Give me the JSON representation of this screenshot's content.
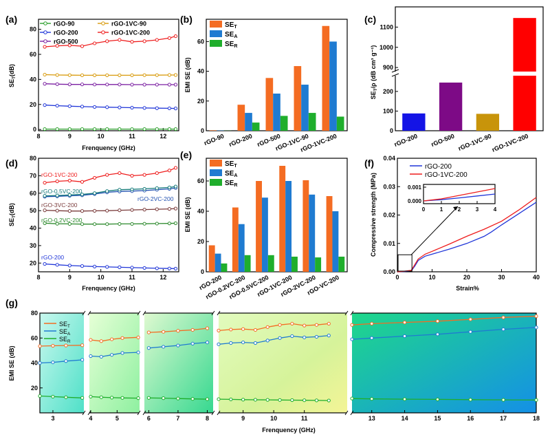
{
  "chart_data": [
    {
      "panel": "(a)",
      "type": "line",
      "xlabel": "Frenquency (GHz)",
      "ylabel": "SE_T(dB)",
      "xlim": [
        8,
        12.5
      ],
      "ylim": [
        -1,
        88
      ],
      "xticks": [
        8,
        9,
        10,
        11,
        12
      ],
      "yticks": [
        0,
        20,
        40,
        60,
        80
      ],
      "series": [
        {
          "name": "rGO-90",
          "color": "#2ca02c",
          "x": [
            8.2,
            8.6,
            9.0,
            9.4,
            9.8,
            10.2,
            10.6,
            11.0,
            11.4,
            11.8,
            12.2,
            12.4
          ],
          "values": [
            0.3,
            0.3,
            0.3,
            0.3,
            0.3,
            0.3,
            0.3,
            0.3,
            0.3,
            0.3,
            0.3,
            0.3
          ]
        },
        {
          "name": "rGO-200",
          "color": "#1f35d8",
          "x": [
            8.2,
            8.6,
            9.0,
            9.4,
            9.8,
            10.2,
            10.6,
            11.0,
            11.4,
            11.8,
            12.2,
            12.4
          ],
          "values": [
            19.5,
            19.0,
            18.6,
            18.3,
            18.0,
            17.8,
            17.6,
            17.4,
            17.2,
            17.0,
            16.9,
            16.8
          ]
        },
        {
          "name": "rGO-500",
          "color": "#7b1fa2",
          "x": [
            8.2,
            8.6,
            9.0,
            9.4,
            9.8,
            10.2,
            10.6,
            11.0,
            11.4,
            11.8,
            12.2,
            12.4
          ],
          "values": [
            36.5,
            36.2,
            36.0,
            36.0,
            35.9,
            35.9,
            35.9,
            35.8,
            35.8,
            35.8,
            35.8,
            35.8
          ]
        },
        {
          "name": "rGO-1VC-90",
          "color": "#d89a0a",
          "x": [
            8.2,
            8.6,
            9.0,
            9.4,
            9.8,
            10.2,
            10.6,
            11.0,
            11.4,
            11.8,
            12.2,
            12.4
          ],
          "values": [
            43.8,
            43.5,
            43.4,
            43.3,
            43.3,
            43.3,
            43.3,
            43.3,
            43.4,
            43.4,
            43.5,
            43.5
          ]
        },
        {
          "name": "rGO-1VC-200",
          "color": "#ee1c1c",
          "x": [
            8.2,
            8.6,
            9.0,
            9.4,
            9.8,
            10.2,
            10.6,
            11.0,
            11.4,
            11.8,
            12.2,
            12.4
          ],
          "values": [
            66.0,
            66.8,
            67.2,
            66.5,
            68.8,
            70.5,
            71.5,
            70.0,
            70.5,
            71.5,
            73.0,
            74.5
          ]
        }
      ]
    },
    {
      "panel": "(b)",
      "type": "bar",
      "ylabel": "EMI SE (dB)",
      "ylim": [
        0,
        75
      ],
      "yticks": [
        0,
        20,
        40,
        60
      ],
      "categories": [
        "rGO-90",
        "rGO-200",
        "rGO-500",
        "rGO-1VC-90",
        "rGO-1VC-200"
      ],
      "series": [
        {
          "name": "SE_T",
          "color": "#f46c22",
          "values": [
            0.3,
            17.5,
            35.5,
            43.5,
            70.5
          ]
        },
        {
          "name": "SE_A",
          "color": "#1f7bd1",
          "values": [
            0.2,
            12.0,
            25.0,
            31.0,
            60.0
          ]
        },
        {
          "name": "SE_R",
          "color": "#1fae2c",
          "values": [
            0.1,
            5.5,
            10.0,
            12.0,
            9.5
          ]
        }
      ]
    },
    {
      "panel": "(c)",
      "type": "bar",
      "ylabel": "SE_T/ρ (dB cm³ g⁻¹)",
      "categories": [
        "rGO-200",
        "rGO-500",
        "rGO-1VC-90",
        "rGO-1VC-200"
      ],
      "values": [
        88,
        245,
        86,
        1145
      ],
      "colors": [
        "#1414e6",
        "#7d0a86",
        "#c8940a",
        "#ff0000"
      ],
      "axis_break": [
        280,
        880
      ],
      "yticks_lower": [
        0,
        100,
        200
      ],
      "yticks_upper": [
        900,
        1000,
        1100
      ]
    },
    {
      "panel": "(d)",
      "type": "line",
      "xlabel": "Frenquency (GHz)",
      "ylabel": "SE_T(dB)",
      "xlim": [
        8,
        12.5
      ],
      "ylim": [
        15,
        80
      ],
      "xticks": [
        8,
        9,
        10,
        11,
        12
      ],
      "yticks": [
        20,
        30,
        40,
        50,
        60,
        70,
        80
      ],
      "series": [
        {
          "name": "rGO-200",
          "color": "#1f35d8",
          "x": [
            8.2,
            8.6,
            9.0,
            9.4,
            9.8,
            10.2,
            10.6,
            11.0,
            11.4,
            11.8,
            12.2,
            12.4
          ],
          "values": [
            19.5,
            19.0,
            18.6,
            18.3,
            18.0,
            17.8,
            17.6,
            17.4,
            17.2,
            17.0,
            16.9,
            16.8
          ]
        },
        {
          "name": "rGO-0.2VC-200",
          "color": "#2d8a2d",
          "x": [
            8.2,
            8.6,
            9.0,
            9.4,
            9.8,
            10.2,
            10.6,
            11.0,
            11.4,
            11.8,
            12.2,
            12.4
          ],
          "values": [
            42.8,
            42.5,
            42.4,
            42.3,
            42.3,
            42.3,
            42.4,
            42.4,
            42.5,
            42.6,
            42.7,
            42.8
          ]
        },
        {
          "name": "rGO-3VC-200",
          "color": "#7a3b3b",
          "x": [
            8.2,
            8.6,
            9.0,
            9.4,
            9.8,
            10.2,
            10.6,
            11.0,
            11.4,
            11.8,
            12.2,
            12.4
          ],
          "values": [
            50.2,
            50.0,
            49.8,
            49.8,
            49.9,
            50.0,
            50.2,
            50.4,
            50.6,
            50.8,
            51.0,
            51.2
          ]
        },
        {
          "name": "rGO-2VC-200",
          "color": "#2050b0",
          "x": [
            8.2,
            8.6,
            9.0,
            9.4,
            9.8,
            10.2,
            10.6,
            11.0,
            11.4,
            11.8,
            12.2,
            12.4
          ],
          "values": [
            58.0,
            58.2,
            58.5,
            58.8,
            59.5,
            60.5,
            61.0,
            61.2,
            61.5,
            62.0,
            62.5,
            63.0
          ]
        },
        {
          "name": "rGO-0.5VC-200",
          "color": "#157a7a",
          "x": [
            8.2,
            8.6,
            9.0,
            9.4,
            9.8,
            10.2,
            10.6,
            11.0,
            11.4,
            11.8,
            12.2,
            12.4
          ],
          "values": [
            58.5,
            58.7,
            59.0,
            59.3,
            60.0,
            61.2,
            62.0,
            62.2,
            62.5,
            62.9,
            63.3,
            63.8
          ]
        },
        {
          "name": "rGO-1VC-200",
          "color": "#ee1c1c",
          "x": [
            8.2,
            8.6,
            9.0,
            9.4,
            9.8,
            10.2,
            10.6,
            11.0,
            11.4,
            11.8,
            12.2,
            12.4
          ],
          "values": [
            66.0,
            66.8,
            67.2,
            66.5,
            68.8,
            70.5,
            71.5,
            70.0,
            70.5,
            71.5,
            73.0,
            74.5
          ]
        }
      ]
    },
    {
      "panel": "(e)",
      "type": "bar",
      "ylabel": "EMI SE (dB)",
      "ylim": [
        0,
        75
      ],
      "yticks": [
        0,
        20,
        40,
        60
      ],
      "categories": [
        "rGO-200",
        "rGO-0.2VC-200",
        "rGO-0.5VC-200",
        "rGO-1VC-200",
        "rGO-2VC-200",
        "rGO-VC-200"
      ],
      "series": [
        {
          "name": "SE_T",
          "color": "#f46c22",
          "values": [
            17.5,
            42.5,
            60.0,
            70.0,
            60.5,
            50.0
          ]
        },
        {
          "name": "SE_A",
          "color": "#1f7bd1",
          "values": [
            12.0,
            31.5,
            49.0,
            60.0,
            51.0,
            40.0
          ]
        },
        {
          "name": "SE_R",
          "color": "#1fae2c",
          "values": [
            5.5,
            11.0,
            11.0,
            10.0,
            9.5,
            10.0
          ]
        }
      ]
    },
    {
      "panel": "(f)",
      "type": "line",
      "xlabel": "Strain%",
      "ylabel": "Compressive strength (MPa)",
      "xlim": [
        0,
        40
      ],
      "ylim": [
        0,
        0.04
      ],
      "xticks": [
        0,
        10,
        20,
        30,
        40
      ],
      "yticks": [
        0.0,
        0.01,
        0.02,
        0.03,
        0.04
      ],
      "inset": {
        "xlim": [
          0,
          4
        ],
        "ylim": [
          -0.0002,
          0.0012
        ],
        "xticks": [
          0,
          1,
          2,
          3,
          4
        ],
        "yticks": [
          0.0,
          0.001
        ]
      },
      "series": [
        {
          "name": "rGO-200",
          "color": "#1f35d8",
          "x": [
            0,
            2,
            4,
            5,
            6,
            8,
            10,
            15,
            20,
            25,
            27,
            30,
            35,
            40
          ],
          "values": [
            0,
            0.0001,
            0.0003,
            0.002,
            0.004,
            0.0055,
            0.0062,
            0.008,
            0.01,
            0.0125,
            0.014,
            0.0165,
            0.0205,
            0.0245
          ]
        },
        {
          "name": "rGO-1VC-200",
          "color": "#ee1c1c",
          "x": [
            0,
            2,
            4,
            5,
            6,
            8,
            10,
            15,
            20,
            25,
            30,
            35,
            40
          ],
          "values": [
            0,
            0.0002,
            0.0005,
            0.0025,
            0.0045,
            0.0062,
            0.0072,
            0.0098,
            0.0125,
            0.015,
            0.0178,
            0.0218,
            0.0262
          ]
        }
      ]
    },
    {
      "panel": "(g)",
      "type": "line",
      "xlabel": "Frenquency (GHz)",
      "ylabel": "EMI SE (dB)",
      "ylim": [
        0,
        80
      ],
      "yticks": [
        20,
        40,
        60,
        80
      ],
      "xticks": [
        3,
        4,
        5,
        6,
        7,
        8,
        9,
        10,
        11,
        13,
        14,
        15,
        16,
        17,
        18
      ],
      "segments": [
        [
          2.6,
          3.95
        ],
        [
          3.95,
          5.85
        ],
        [
          5.85,
          8.2
        ],
        [
          8.2,
          12.4
        ],
        [
          12.4,
          18.0
        ]
      ],
      "series": [
        {
          "name": "SE_T",
          "color": "#f46c22",
          "x": [
            2.6,
            3.0,
            3.4,
            3.9,
            4.0,
            4.4,
            4.8,
            5.2,
            5.8,
            6.0,
            6.5,
            7.0,
            7.5,
            8.0,
            8.2,
            8.6,
            9.0,
            9.4,
            9.8,
            10.2,
            10.6,
            11.0,
            11.4,
            11.8,
            12.4,
            13,
            14,
            15,
            16,
            17,
            18
          ],
          "values": [
            53.5,
            53.8,
            54.0,
            54.2,
            58.5,
            57.5,
            59.0,
            60.0,
            60.5,
            64.5,
            65.0,
            65.8,
            66.5,
            67.8,
            66.0,
            66.8,
            67.2,
            66.5,
            68.8,
            70.5,
            71.5,
            70.0,
            70.5,
            71.5,
            70.5,
            71.5,
            72.5,
            73.5,
            75.0,
            76.5,
            77.5
          ]
        },
        {
          "name": "SE_A",
          "color": "#1f7bd1",
          "x": [
            2.6,
            3.0,
            3.4,
            3.9,
            4.0,
            4.4,
            4.8,
            5.2,
            5.8,
            6.0,
            6.5,
            7.0,
            7.5,
            8.0,
            8.2,
            8.6,
            9.0,
            9.4,
            9.8,
            10.2,
            10.6,
            11.0,
            11.4,
            11.8,
            12.4,
            13,
            14,
            15,
            16,
            17,
            18
          ],
          "values": [
            40.0,
            40.5,
            41.5,
            42.5,
            45.5,
            45.0,
            46.5,
            48.0,
            48.5,
            52.0,
            53.0,
            54.0,
            55.5,
            56.5,
            55.0,
            56.0,
            56.5,
            56.0,
            58.0,
            60.0,
            61.5,
            60.5,
            61.0,
            62.0,
            59.0,
            60.0,
            61.5,
            63.0,
            65.0,
            67.0,
            68.5
          ]
        },
        {
          "name": "SE_R",
          "color": "#1fae2c",
          "x": [
            2.6,
            3.0,
            3.4,
            3.9,
            4.0,
            4.4,
            4.8,
            5.2,
            5.8,
            6.0,
            6.5,
            7.0,
            7.5,
            8.0,
            8.2,
            8.6,
            9.0,
            9.4,
            9.8,
            10.2,
            10.6,
            11.0,
            11.4,
            11.8,
            12.4,
            13,
            14,
            15,
            16,
            17,
            18
          ],
          "values": [
            13.5,
            13.0,
            12.5,
            12.0,
            13.0,
            12.5,
            12.2,
            12.0,
            11.8,
            12.0,
            11.8,
            11.5,
            11.2,
            11.0,
            11.0,
            10.8,
            10.6,
            10.5,
            10.4,
            10.3,
            10.2,
            10.1,
            10.0,
            9.9,
            11.5,
            11.2,
            11.0,
            10.8,
            10.6,
            10.4,
            10.3
          ]
        }
      ]
    }
  ]
}
